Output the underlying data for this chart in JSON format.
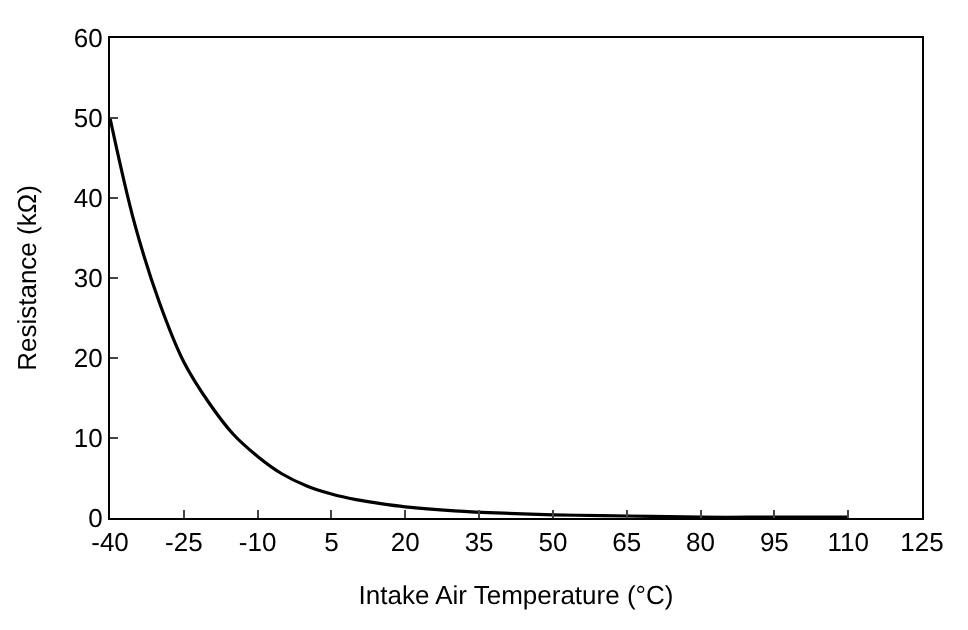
{
  "chart_data": {
    "type": "line",
    "xlabel": "Intake Air Temperature (°C)",
    "ylabel": "Resistance (kΩ)",
    "x": [
      -40,
      -35,
      -30,
      -25,
      -20,
      -15,
      -10,
      -5,
      0,
      5,
      10,
      15,
      20,
      30,
      40,
      50,
      60,
      70,
      80,
      90,
      100,
      110
    ],
    "series": [
      {
        "color": "#000000",
        "values": [
          50,
          36.8,
          27,
          19.5,
          14.5,
          10.5,
          7.7,
          5.5,
          4,
          3,
          2.3,
          1.8,
          1.4,
          0.9,
          0.6,
          0.4,
          0.3,
          0.2,
          0.1,
          0.1,
          0.1,
          0.1
        ]
      }
    ],
    "xlim": [
      -40,
      125
    ],
    "xticks": [
      -40,
      -25,
      -10,
      5,
      20,
      35,
      50,
      65,
      80,
      95,
      110,
      125
    ],
    "ylim": [
      0,
      60
    ],
    "yticks": [
      0,
      10,
      20,
      30,
      40,
      50,
      60
    ],
    "legend": false,
    "marker": "none",
    "line_style": "solid"
  }
}
